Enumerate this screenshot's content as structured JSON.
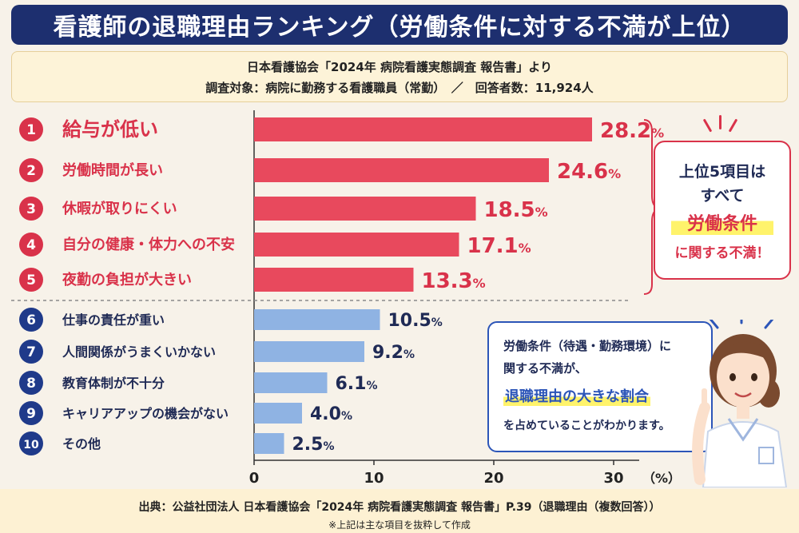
{
  "title": "看護師の退職理由ランキング（労働条件に対する不満が上位）",
  "source_info": {
    "line1": "日本看護協会「2024年 病院看護実態調査 報告書」より",
    "line2": "調査対象：病院に勤務する看護職員（常勤）　／　回答者数：11,924人"
  },
  "chart_data": {
    "type": "bar",
    "orientation": "horizontal",
    "categories": [
      "給与が低い",
      "労働時間が長い",
      "休暇が取りにくい",
      "自分の健康・体力への不安",
      "夜勤の負担が大きい",
      "仕事の責任が重い",
      "人間関係がうまくいかない",
      "教育体制が不十分",
      "キャリアアップの機会がない",
      "その他"
    ],
    "ranks": [
      "1",
      "2",
      "3",
      "4",
      "5",
      "6",
      "7",
      "8",
      "9",
      "10"
    ],
    "values": [
      28.2,
      24.6,
      18.5,
      17.1,
      13.3,
      10.5,
      9.2,
      6.1,
      4.0,
      2.5
    ],
    "value_labels": [
      "28.2",
      "24.6",
      "18.5",
      "17.1",
      "13.3",
      "10.5",
      "9.2",
      "6.1",
      "4.0",
      "2.5"
    ],
    "unit": "%",
    "xlim": [
      0,
      30
    ],
    "x_ticks": [
      "0",
      "10",
      "20",
      "30"
    ],
    "xlabel": "（%）",
    "highlight_top": 5,
    "colors": {
      "top": "#e8495d",
      "top_text": "#d9324a",
      "rest": "#8fb3e3",
      "rest_text": "#1f2a55"
    }
  },
  "callout_top": {
    "line1": "上位5項目は",
    "line2": "すべて",
    "highlight": "労働条件",
    "line4": "に関する不満！"
  },
  "callout_nurse": {
    "line1": "労働条件（待遇・勤務環境）に",
    "line2": "関する不満が、",
    "highlight": "退職理由の大きな割合",
    "line4": "を占めていることがわかります。"
  },
  "footer": {
    "source": "出典：公益社団法人 日本看護協会「2024年 病院看護実態調査 報告書」P.39（退職理由（複数回答））",
    "note": "※上記は主な項目を抜粋して作成"
  }
}
